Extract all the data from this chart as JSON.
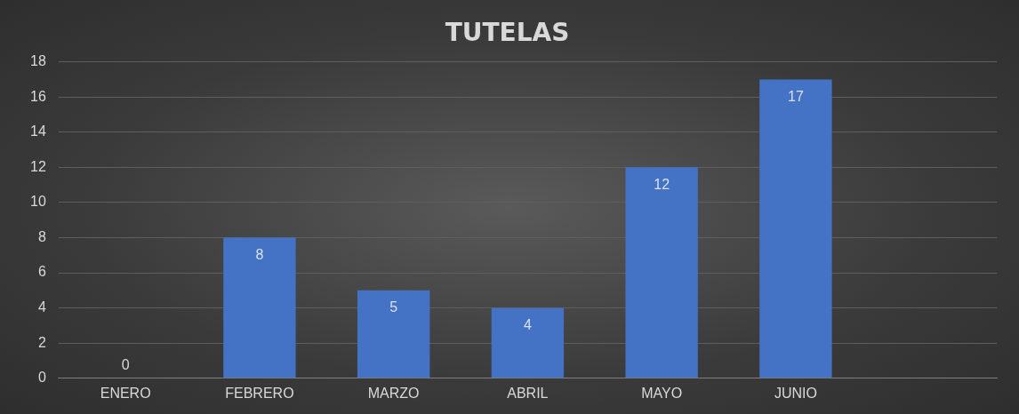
{
  "chart_data": {
    "type": "bar",
    "title": "TUTELAS",
    "categories": [
      "ENERO",
      "FEBRERO",
      "MARZO",
      "ABRIL",
      "MAYO",
      "JUNIO",
      null
    ],
    "values": [
      0,
      8,
      5,
      4,
      12,
      17,
      null
    ],
    "color": "#4472c4",
    "ylim": [
      0,
      18
    ],
    "yticks": [
      0,
      2,
      4,
      6,
      8,
      10,
      12,
      14,
      16,
      18
    ],
    "grid": "y",
    "data_labels": true
  }
}
